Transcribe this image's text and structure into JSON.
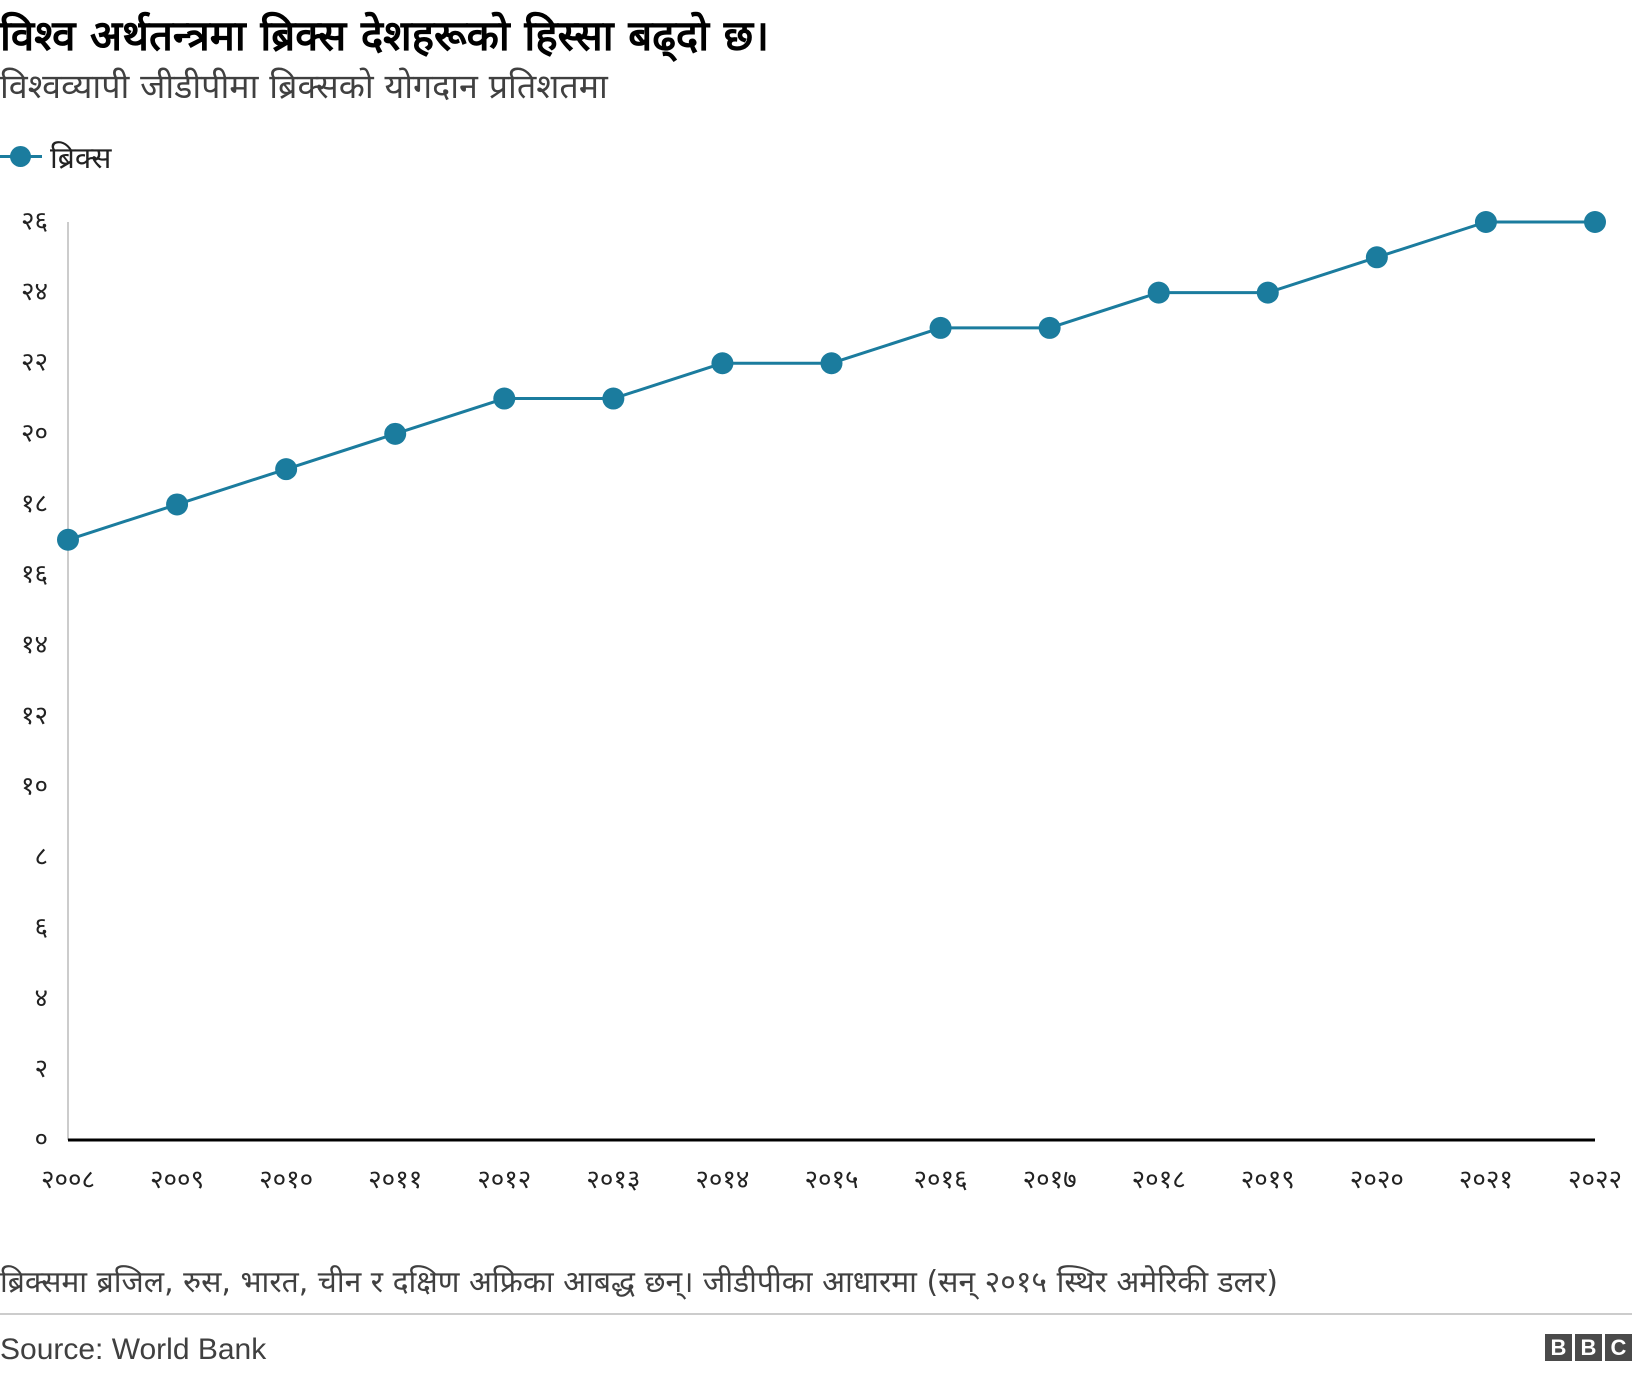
{
  "title": "विश्व अर्थतन्त्रमा ब्रिक्स देशहरूको हिस्सा बढ्दो छ।",
  "subtitle": "विश्वव्यापी जीडीपीमा ब्रिक्सको योगदान प्रतिशतमा",
  "legend": {
    "label": "ब्रिक्स"
  },
  "colors": {
    "series": "#1b7c9e",
    "axis": "#000000",
    "yaxis": "#cccccc",
    "text": "#222222"
  },
  "note": "ब्रिक्समा ब्रजिल, रुस, भारत, चीन र दक्षिण अफ्रिका आबद्ध छन्। जीडीपीका आधारमा (सन् २०१५ स्थिर अमेरिकी डलर)",
  "source": "Source: World Bank",
  "logo": [
    "B",
    "B",
    "C"
  ],
  "chart_data": {
    "type": "line",
    "title": "विश्व अर्थतन्त्रमा ब्रिक्स देशहरूको हिस्सा बढ्दो छ।",
    "subtitle": "विश्वव्यापी जीडीपीमा ब्रिक्सको योगदान प्रतिशतमा",
    "xlabel": "",
    "ylabel": "",
    "x": [
      2008,
      2009,
      2010,
      2011,
      2012,
      2013,
      2014,
      2015,
      2016,
      2017,
      2018,
      2019,
      2020,
      2021,
      2022
    ],
    "x_tick_labels": [
      "२००८",
      "२००९",
      "२०१०",
      "२०११",
      "२०१२",
      "२०१३",
      "२०१४",
      "२०१५",
      "२०१६",
      "२०१७",
      "२०१८",
      "२०१९",
      "२०२०",
      "२०२१",
      "२०२२"
    ],
    "series": [
      {
        "name": "ब्रिक्स",
        "values": [
          17,
          18,
          19,
          20,
          21,
          21,
          22,
          22,
          23,
          23,
          24,
          24,
          25,
          26,
          26
        ]
      }
    ],
    "ylim": [
      0,
      26
    ],
    "y_ticks": [
      0,
      2,
      4,
      6,
      8,
      10,
      12,
      14,
      16,
      18,
      20,
      22,
      24,
      26
    ],
    "y_tick_labels": [
      "०",
      "२",
      "४",
      "६",
      "८",
      "१०",
      "१२",
      "१४",
      "१६",
      "१८",
      "२०",
      "२२",
      "२४",
      "२६"
    ],
    "grid": false,
    "legend_position": "top-left"
  }
}
